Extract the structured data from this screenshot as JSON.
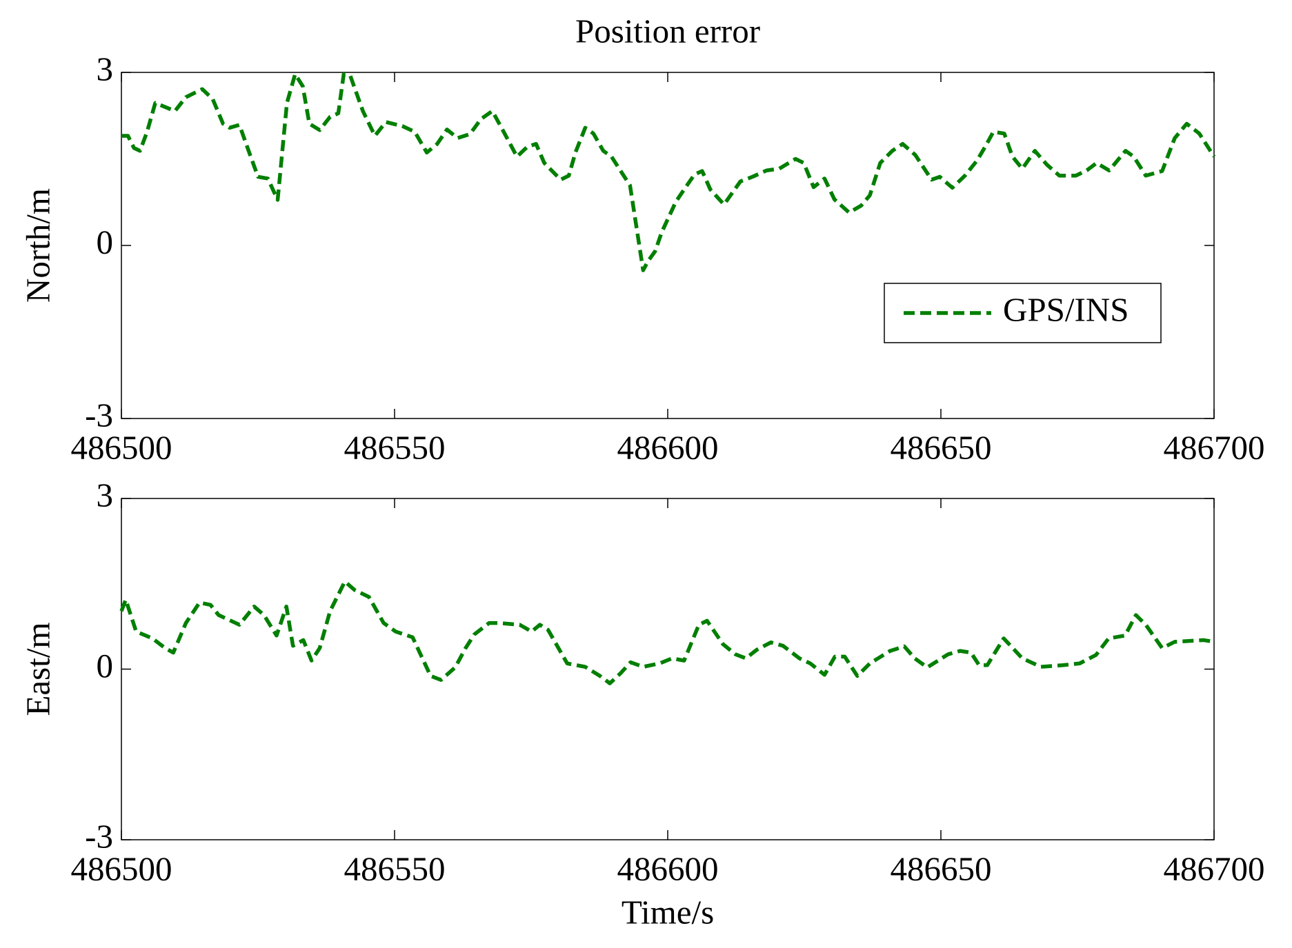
{
  "chart_data": [
    {
      "type": "line",
      "title": "Position error",
      "ylabel": "North/m",
      "xlim": [
        486500,
        486700
      ],
      "xticks": [
        486500,
        486550,
        486600,
        486650,
        486700
      ],
      "ylim": [
        -3,
        3
      ],
      "yticks": [
        -3,
        0,
        3
      ],
      "grid": false,
      "legend": "right",
      "series": [
        {
          "name": "GPS/INS",
          "color": "#007f00",
          "style": "dashed",
          "x": [
            486500,
            486501.2,
            486502.3,
            486503.4,
            486504.7,
            486506.2,
            486508,
            486509.8,
            486511.8,
            486514.8,
            486516.7,
            486518.6,
            486519.8,
            486521.6,
            486523.1,
            486525,
            486526.8,
            486528.6,
            486530.3,
            486531.8,
            486533.2,
            486534.4,
            486536.3,
            486538.2,
            486539.7,
            486540.7,
            486541.9,
            486544.2,
            486546.4,
            486548.4,
            486551.4,
            486553.7,
            486555.9,
            486557.8,
            486559.6,
            486561.5,
            486563.8,
            486565.8,
            486567.9,
            486569.8,
            486572.4,
            486574.3,
            486575.9,
            486577.4,
            486580.4,
            486581.9,
            486583.1,
            486584.9,
            486586.4,
            486588.2,
            486589.7,
            486591.6,
            486593.1,
            486595.5,
            486596.4,
            486597.7,
            486598.9,
            486601.5,
            486603,
            486604.9,
            486606.3,
            486607.8,
            486610.3,
            486613.3,
            486615.5,
            486618.1,
            486620.4,
            486623.4,
            486624.9,
            486626.7,
            486628.7,
            486630.5,
            486633.2,
            486635.4,
            486637,
            486638.9,
            486641.1,
            486643,
            486645.3,
            486648.3,
            486649.8,
            486652.1,
            486654.4,
            486656.6,
            486658.1,
            486659.6,
            486661.6,
            486663.1,
            486664.9,
            486667.2,
            486669.4,
            486671.7,
            486674.7,
            486676.7,
            486678.5,
            486680.8,
            486683.8,
            486685.3,
            486687.5,
            486690.5,
            486692.8,
            486695,
            486697.3,
            486700
          ],
          "values": [
            1.9,
            1.9,
            1.69,
            1.64,
            1.97,
            2.47,
            2.4,
            2.33,
            2.57,
            2.71,
            2.54,
            2.11,
            2.04,
            2.09,
            1.69,
            1.19,
            1.16,
            0.79,
            2.47,
            2.97,
            2.76,
            2.11,
            2.0,
            2.23,
            2.29,
            2.97,
            2.94,
            2.33,
            1.9,
            2.14,
            2.07,
            1.97,
            1.61,
            1.76,
            2.01,
            1.86,
            1.93,
            2.19,
            2.33,
            2.0,
            1.54,
            1.71,
            1.76,
            1.43,
            1.14,
            1.21,
            1.61,
            2.04,
            1.94,
            1.64,
            1.54,
            1.26,
            1.04,
            -0.43,
            -0.27,
            -0.1,
            0.23,
            0.76,
            0.97,
            1.23,
            1.29,
            0.97,
            0.71,
            1.11,
            1.19,
            1.3,
            1.33,
            1.5,
            1.43,
            1.01,
            1.16,
            0.8,
            0.57,
            0.69,
            0.87,
            1.43,
            1.64,
            1.76,
            1.57,
            1.14,
            1.19,
            1.0,
            1.21,
            1.47,
            1.71,
            1.97,
            1.94,
            1.54,
            1.33,
            1.64,
            1.4,
            1.21,
            1.21,
            1.3,
            1.43,
            1.3,
            1.64,
            1.54,
            1.21,
            1.29,
            1.86,
            2.11,
            1.94,
            1.54
          ]
        }
      ]
    },
    {
      "type": "line",
      "ylabel": "East/m",
      "xlabel": "Time/s",
      "xlim": [
        486500,
        486700
      ],
      "xticks": [
        486500,
        486550,
        486600,
        486650,
        486700
      ],
      "ylim": [
        -3,
        3
      ],
      "yticks": [
        -3,
        0,
        3
      ],
      "grid": false,
      "series": [
        {
          "color": "#007f00",
          "style": "dashed",
          "x": [
            486500,
            486500.8,
            486502.7,
            486505.7,
            486508,
            486509.5,
            486511.8,
            486514.3,
            486516.3,
            486517.8,
            486521.6,
            486524.3,
            486526.1,
            486528.4,
            486530.2,
            486531.4,
            486533.3,
            486534.8,
            486536.3,
            486538.2,
            486540.9,
            486542.7,
            486545.3,
            486548,
            486550.2,
            486553.3,
            486554.8,
            486556.6,
            486558.5,
            486561.1,
            486563,
            486564.6,
            486567.3,
            486569.1,
            486572.9,
            486575.1,
            486576.6,
            486578.1,
            486581.6,
            486584.9,
            486587.6,
            486589.4,
            486591.4,
            486593.2,
            486595.5,
            486598.5,
            486600.8,
            486603,
            486605.7,
            486607.2,
            486610.1,
            486612.4,
            486614.3,
            486616.3,
            486618.9,
            486621.1,
            486624.1,
            486626.1,
            486628.7,
            486630.6,
            486632.4,
            486634.7,
            486637,
            486640.7,
            486643.3,
            486645.2,
            486647.5,
            486651.3,
            486653.5,
            486655.5,
            486657,
            486658.5,
            486661.5,
            486664.9,
            486668.3,
            486672.4,
            486675.4,
            486678.4,
            486680.7,
            486683.7,
            486685.7,
            486687.5,
            486690.5,
            486692.8,
            486698.1,
            486700
          ],
          "values": [
            1.02,
            1.22,
            0.66,
            0.54,
            0.37,
            0.29,
            0.81,
            1.17,
            1.13,
            0.95,
            0.78,
            1.1,
            0.95,
            0.59,
            1.1,
            0.41,
            0.51,
            0.15,
            0.37,
            1.02,
            1.54,
            1.39,
            1.27,
            0.81,
            0.66,
            0.56,
            0.25,
            -0.12,
            -0.19,
            0.03,
            0.37,
            0.61,
            0.81,
            0.81,
            0.78,
            0.66,
            0.78,
            0.69,
            0.1,
            0.04,
            -0.12,
            -0.25,
            -0.07,
            0.12,
            0.04,
            0.1,
            0.19,
            0.15,
            0.78,
            0.85,
            0.44,
            0.26,
            0.19,
            0.34,
            0.47,
            0.41,
            0.19,
            0.1,
            -0.1,
            0.22,
            0.22,
            -0.12,
            0.1,
            0.32,
            0.4,
            0.19,
            0.03,
            0.26,
            0.32,
            0.29,
            0.07,
            0.07,
            0.54,
            0.19,
            0.04,
            0.07,
            0.1,
            0.25,
            0.54,
            0.59,
            0.95,
            0.78,
            0.37,
            0.48,
            0.51,
            0.48
          ]
        }
      ]
    }
  ]
}
